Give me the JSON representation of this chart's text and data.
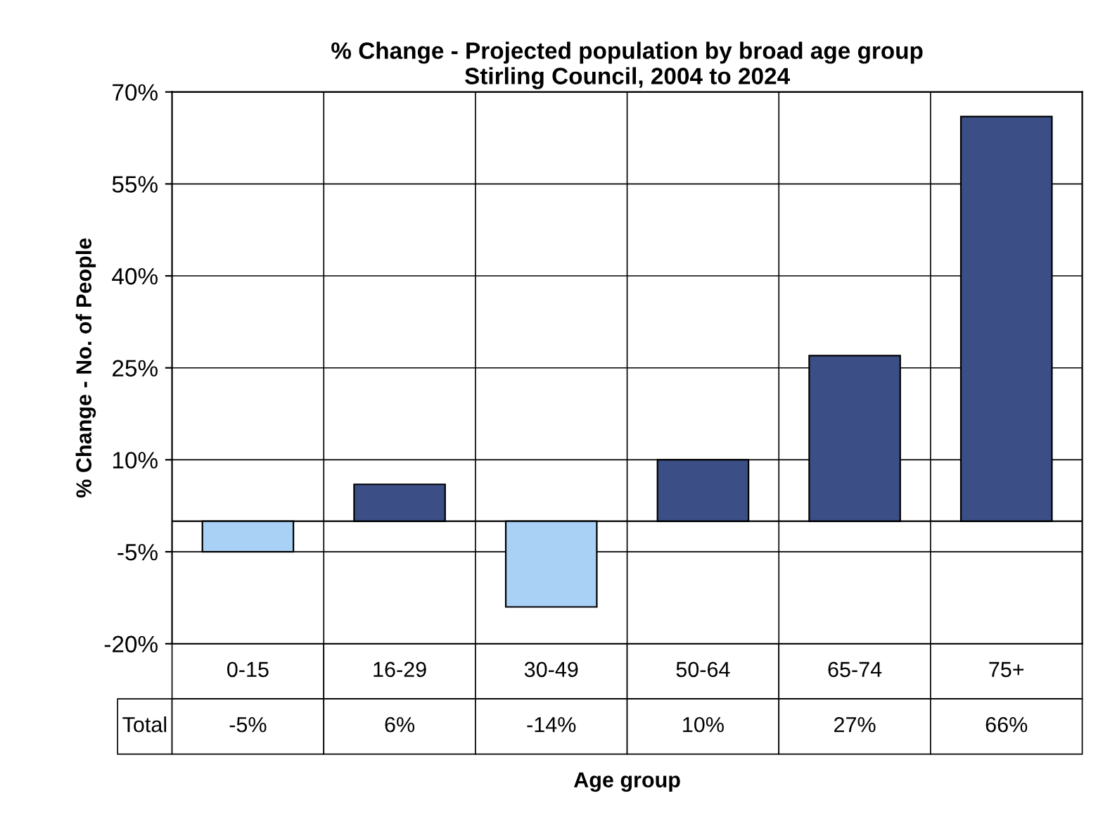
{
  "chart_data": {
    "type": "bar",
    "title": "% Change - Projected population by broad age group\nStirling Council, 2004 to 2024",
    "xlabel": "Age group",
    "ylabel": "% Change - No. of People",
    "categories": [
      "0-15",
      "16-29",
      "30-49",
      "50-64",
      "65-74",
      "75+"
    ],
    "series": [
      {
        "name": "Total",
        "values": [
          -5,
          6,
          -14,
          10,
          27,
          66
        ],
        "colors": [
          "#a9d0f5",
          "#3b4f86",
          "#a9d0f5",
          "#3b4f86",
          "#3b4f86",
          "#3b4f86"
        ],
        "value_labels": [
          "-5%",
          "6%",
          "-14%",
          "10%",
          "27%",
          "66%"
        ]
      }
    ],
    "ylim": [
      -20,
      70
    ],
    "yticks": [
      {
        "value": -20,
        "label": "-20%"
      },
      {
        "value": -5,
        "label": "-5%"
      },
      {
        "value": 10,
        "label": "10%"
      },
      {
        "value": 25,
        "label": "25%"
      },
      {
        "value": 40,
        "label": "40%"
      },
      {
        "value": 55,
        "label": "55%"
      },
      {
        "value": 70,
        "label": "70%"
      }
    ],
    "grid": true
  }
}
